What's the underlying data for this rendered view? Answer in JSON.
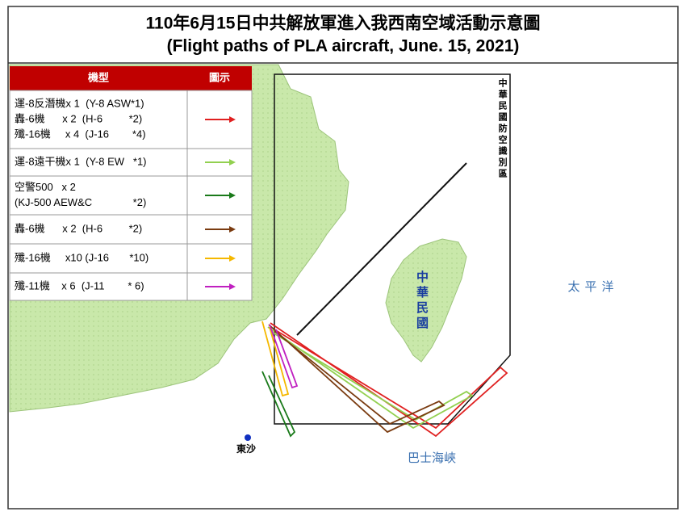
{
  "header": {
    "title_zh": "110年6月15日中共解放軍進入我西南空域活動示意圖",
    "title_en": "(Flight paths of PLA aircraft, June. 15, 2021)"
  },
  "legend": {
    "headers": [
      "機型",
      "圖示"
    ],
    "rows": [
      {
        "lines": [
          "運-8反潛機x 1  (Y-8 ASW*1)",
          "轟-6機      x 2  (H-6         *2)",
          "殲-16機     x 4  (J-16        *4)"
        ],
        "color": "#e02020"
      },
      {
        "lines": [
          "運-8遠干機x 1  (Y-8 EW   *1)"
        ],
        "color": "#92d050"
      },
      {
        "lines": [
          "空警500   x 2",
          "(KJ-500 AEW&C              *2)"
        ],
        "color": "#1a7a1a"
      },
      {
        "lines": [
          "轟-6機      x 2  (H-6         *2)"
        ],
        "color": "#7a3b10"
      },
      {
        "lines": [
          "殲-16機     x10 (J-16       *10)"
        ],
        "color": "#f5b800"
      },
      {
        "lines": [
          "殲-11機    x 6  (J-11        * 6)"
        ],
        "color": "#c020c0"
      }
    ]
  },
  "map": {
    "adiz_label": "中華民國防空識別區",
    "taiwan_label": "中華民國",
    "pacific_label": "太平洋",
    "strait_label": "巴士海峽",
    "dongsha_label": "東沙"
  }
}
